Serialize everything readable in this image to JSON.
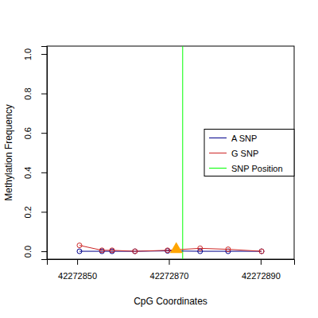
{
  "chart_data": {
    "type": "line",
    "x_label": "CpG Coordinates",
    "y_label": "Methylation Frequency",
    "x": [
      42272850.5,
      42272855.4,
      42272857.6,
      42272862.6,
      42272869.7,
      42272876.8,
      42272882.9,
      42272890.2
    ],
    "series": [
      {
        "name": "A SNP",
        "color": "#00008b",
        "marker": "circle",
        "values": [
          0.0,
          0.0,
          0.0,
          0.0,
          0.002,
          0.0,
          0.0,
          0.0
        ]
      },
      {
        "name": "G SNP",
        "color": "#cd2626",
        "marker": "circle",
        "values": [
          0.03,
          0.005,
          0.005,
          0.0,
          0.005,
          0.015,
          0.01,
          0.0
        ]
      }
    ],
    "vlines": [
      {
        "name": "SNP Position",
        "x": 42272873.0,
        "color": "#00ff00"
      }
    ],
    "markers": [
      {
        "x": 42272871.6,
        "y": 0.01,
        "color": "#ffa500",
        "marker": "triangle"
      }
    ],
    "xlim": [
      42272843.4,
      42272897.3
    ],
    "xticks": [
      42272850,
      42272870,
      42272890
    ],
    "ylim": [
      -0.04,
      1.04
    ],
    "yticks": [
      {
        "value": 0,
        "label": "0.0"
      },
      {
        "value": 0.2,
        "label": "0.2"
      },
      {
        "value": 0.4,
        "label": "0.4"
      },
      {
        "value": 0.6,
        "label": "0.6"
      },
      {
        "value": 0.8,
        "label": "0.8"
      },
      {
        "value": 1.0,
        "label": "1.0"
      }
    ],
    "legend": "right",
    "grid": false
  }
}
